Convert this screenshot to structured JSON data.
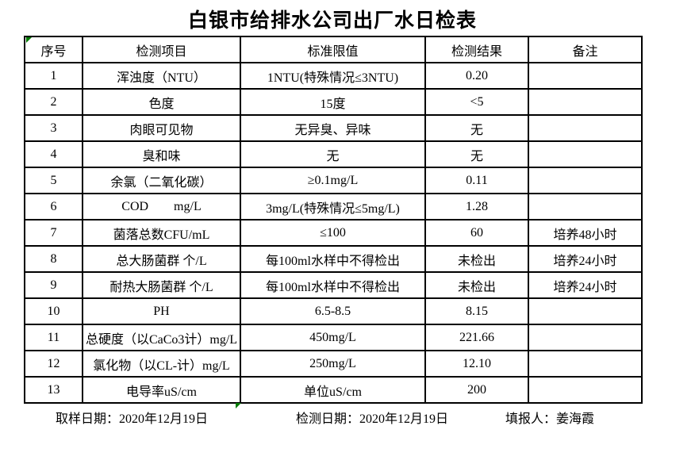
{
  "title": "白银市给排水公司出厂水日检表",
  "table": {
    "headers": [
      "序号",
      "检测项目",
      "标准限值",
      "检测结果",
      "备注"
    ],
    "rows": [
      [
        "1",
        "浑浊度（NTU）",
        "1NTU(特殊情况≤3NTU)",
        "0.20",
        ""
      ],
      [
        "2",
        "色度",
        "15度",
        "<5",
        ""
      ],
      [
        "3",
        "肉眼可见物",
        "无异臭、异味",
        "无",
        ""
      ],
      [
        "4",
        "臭和味",
        "无",
        "无",
        ""
      ],
      [
        "5",
        "余氯（二氧化碳）",
        "≥0.1mg/L",
        "0.11",
        ""
      ],
      [
        "6",
        "COD        mg/L",
        "3mg/L(特殊情况≤5mg/L)",
        "1.28",
        ""
      ],
      [
        "7",
        "菌落总数CFU/mL",
        "≤100",
        "60",
        "培养48小时"
      ],
      [
        "8",
        "总大肠菌群 个/L",
        "每100ml水样中不得检出",
        "未检出",
        "培养24小时"
      ],
      [
        "9",
        "耐热大肠菌群 个/L",
        "每100ml水样中不得检出",
        "未检出",
        "培养24小时"
      ],
      [
        "10",
        "PH",
        "6.5-8.5",
        "8.15",
        ""
      ],
      [
        "11",
        "总硬度（以CaCo3计）mg/L",
        "450mg/L",
        "221.66",
        ""
      ],
      [
        "12",
        "氯化物（以CL-计）mg/L",
        "250mg/L",
        "12.10",
        ""
      ],
      [
        "13",
        "电导率uS/cm",
        "单位uS/cm",
        "200",
        ""
      ]
    ]
  },
  "footer": {
    "sampling": "取样日期：2020年12月19日",
    "testing": "检测日期：2020年12月19日",
    "reporter": "填报人：姜海霞"
  },
  "colors": {
    "cell_flag_green": "#007a00",
    "border": "#000000",
    "background": "#ffffff"
  },
  "icons": {
    "header_cell_flag": "excel-cell-flag-triangle",
    "bottom_cell_flag": "excel-cell-flag-triangle"
  }
}
